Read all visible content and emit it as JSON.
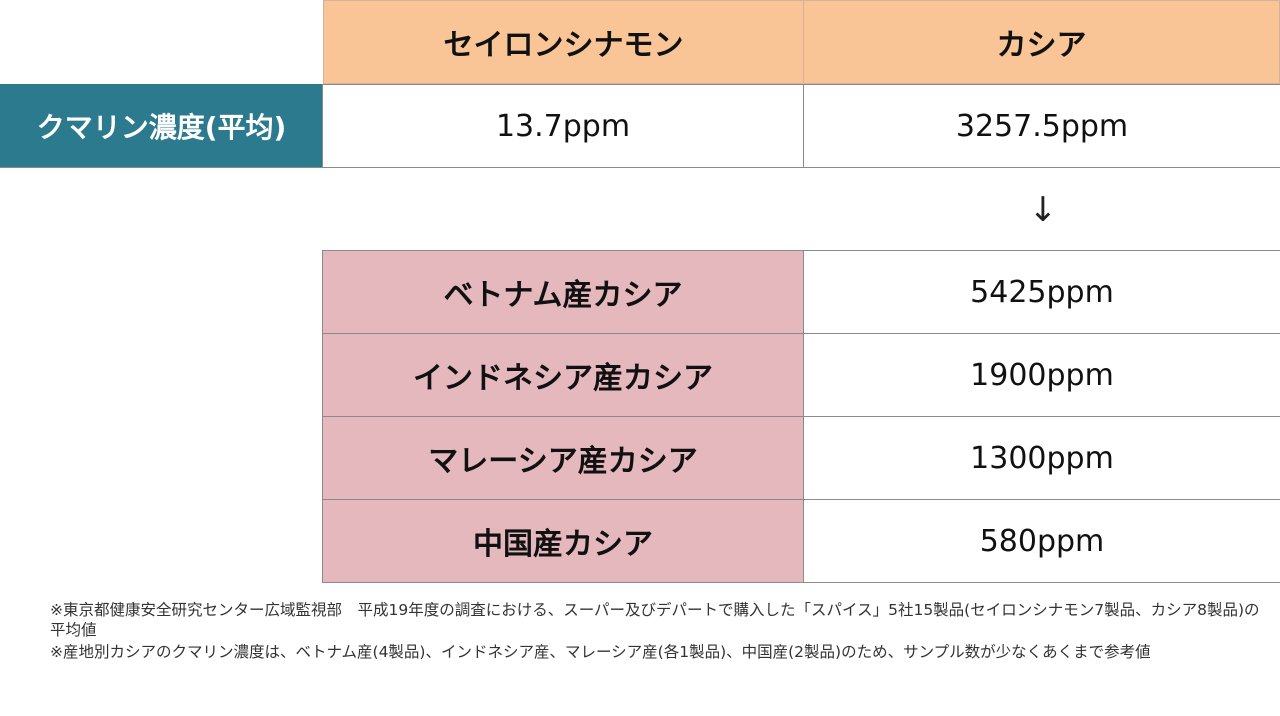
{
  "table_top": {
    "headers": [
      "セイロンシナモン",
      "カシア"
    ],
    "row_label": "クマリン濃度(平均)",
    "values": [
      "13.7ppm",
      "3257.5ppm"
    ]
  },
  "arrow": "↓",
  "table_origin": {
    "rows": [
      {
        "label": "ベトナム産カシア",
        "value": "5425ppm"
      },
      {
        "label": "インドネシア産カシア",
        "value": "1900ppm"
      },
      {
        "label": "マレーシア産カシア",
        "value": "1300ppm"
      },
      {
        "label": "中国産カシア",
        "value": "580ppm"
      }
    ]
  },
  "notes": [
    "※東京都健康安全研究センター広域監視部　平成19年度の調査における、スーパー及びデパートで購入した「スパイス」5社15製品(セイロンシナモン7製品、カシア8製品)の平均値",
    "※産地別カシアのクマリン濃度は、ベトナム産(4製品)、インドネシア産、マレーシア産(各1製品)、中国産(2製品)のため、サンプル数が少なくあくまで参考値"
  ],
  "colors": {
    "header_bg": "#f9c597",
    "label_bg": "#2b7a8e",
    "origin_label_bg": "#e4b8bd"
  }
}
